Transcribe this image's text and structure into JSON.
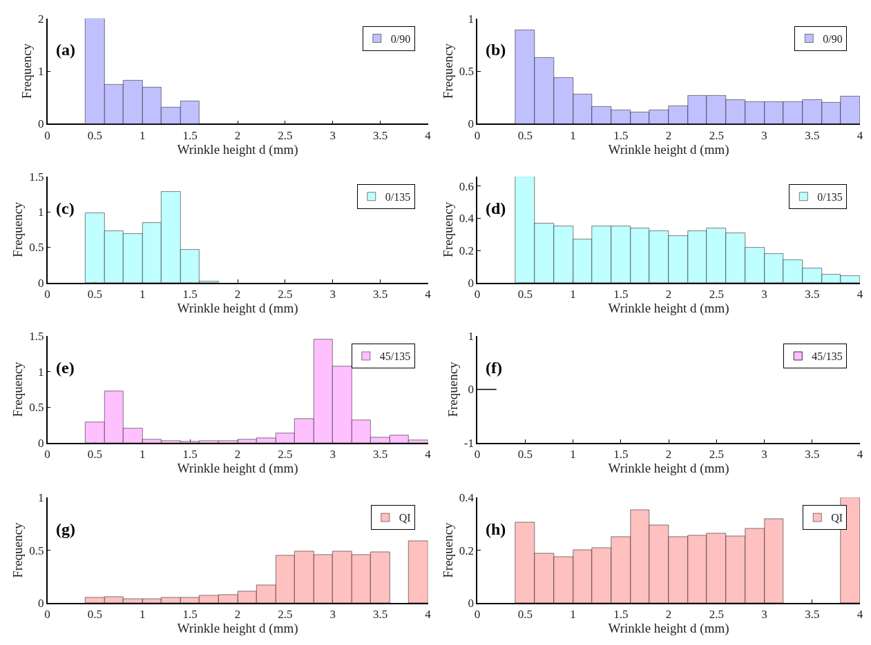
{
  "chart_data": [
    {
      "type": "histogram",
      "title": "(a)",
      "xlabel": "Wrinkle height d (mm)",
      "ylabel": "Frequency",
      "legend": "top right",
      "bins": [
        0.4,
        0.6,
        0.8,
        1.0,
        1.2,
        1.4,
        1.6
      ],
      "series": [
        {
          "name": "0/90",
          "color": "#c0c0ff",
          "values": [
            2.0,
            0.74,
            0.82,
            0.69,
            0.31,
            0.43
          ]
        }
      ],
      "xlim": [
        0,
        4
      ],
      "xticks": [
        0,
        0.5,
        1,
        1.5,
        2,
        2.5,
        3,
        3.5,
        4
      ],
      "ylim": [
        0,
        2
      ],
      "yticks": [
        0,
        1,
        2
      ]
    },
    {
      "type": "histogram",
      "title": "(b)",
      "xlabel": "Wrinkle height d (mm)",
      "ylabel": "Frequency",
      "legend": "top right",
      "bins": [
        0.4,
        0.6,
        0.8,
        1.0,
        1.2,
        1.4,
        1.6,
        1.8,
        2.0,
        2.2,
        2.4,
        2.6,
        2.8,
        3.0,
        3.2,
        3.4,
        3.6,
        3.8,
        4.0
      ],
      "series": [
        {
          "name": "0/90",
          "color": "#c0c0ff",
          "values": [
            0.89,
            0.63,
            0.44,
            0.28,
            0.16,
            0.13,
            0.11,
            0.13,
            0.17,
            0.27,
            0.27,
            0.23,
            0.21,
            0.21,
            0.21,
            0.23,
            0.2,
            0.26
          ]
        }
      ],
      "xlim": [
        0,
        4
      ],
      "xticks": [
        0,
        0.5,
        1,
        1.5,
        2,
        2.5,
        3,
        3.5,
        4
      ],
      "ylim": [
        0,
        1
      ],
      "yticks": [
        0,
        0.5,
        1
      ]
    },
    {
      "type": "histogram",
      "title": "(c)",
      "xlabel": "Wrinkle height d (mm)",
      "ylabel": "Frequency",
      "legend": "top right",
      "bins": [
        0.4,
        0.6,
        0.8,
        1.0,
        1.2,
        1.4,
        1.6,
        1.8
      ],
      "series": [
        {
          "name": "0/135",
          "color": "#c0ffff",
          "values": [
            0.98,
            0.73,
            0.69,
            0.85,
            1.29,
            0.47,
            0.02
          ]
        }
      ],
      "xlim": [
        0,
        4
      ],
      "xticks": [
        0,
        0.5,
        1,
        1.5,
        2,
        2.5,
        3,
        3.5,
        4
      ],
      "ylim": [
        0,
        1.5
      ],
      "yticks": [
        0,
        0.5,
        1,
        1.5
      ]
    },
    {
      "type": "histogram",
      "title": "(d)",
      "xlabel": "Wrinkle height d (mm)",
      "ylabel": "Frequency",
      "legend": "top right",
      "bins": [
        0.4,
        0.6,
        0.8,
        1.0,
        1.2,
        1.4,
        1.6,
        1.8,
        2.0,
        2.2,
        2.4,
        2.6,
        2.8,
        3.0,
        3.2,
        3.4,
        3.6,
        3.8,
        4.0
      ],
      "series": [
        {
          "name": "0/135",
          "color": "#c0ffff",
          "values": [
            0.66,
            0.37,
            0.35,
            0.27,
            0.35,
            0.35,
            0.34,
            0.32,
            0.29,
            0.32,
            0.34,
            0.31,
            0.22,
            0.18,
            0.14,
            0.09,
            0.05,
            0.04
          ]
        }
      ],
      "xlim": [
        0,
        4
      ],
      "xticks": [
        0,
        0.5,
        1,
        1.5,
        2,
        2.5,
        3,
        3.5,
        4
      ],
      "ylim": [
        0,
        0.66
      ],
      "yticks": [
        0,
        0.2,
        0.4,
        0.6
      ]
    },
    {
      "type": "histogram",
      "title": "(e)",
      "xlabel": "Wrinkle height d (mm)",
      "ylabel": "Frequency",
      "legend": "top right",
      "bins": [
        0.4,
        0.6,
        0.8,
        1.0,
        1.2,
        1.4,
        1.6,
        1.8,
        2.0,
        2.2,
        2.4,
        2.6,
        2.8,
        3.0,
        3.2,
        3.4,
        3.6,
        3.8,
        4.0
      ],
      "series": [
        {
          "name": "45/135",
          "color": "#ffc0ff",
          "values": [
            0.29,
            0.72,
            0.2,
            0.05,
            0.03,
            0.02,
            0.03,
            0.03,
            0.05,
            0.07,
            0.13,
            0.34,
            1.45,
            1.07,
            0.32,
            0.08,
            0.1,
            0.04
          ]
        }
      ],
      "xlim": [
        0,
        4
      ],
      "xticks": [
        0,
        0.5,
        1,
        1.5,
        2,
        2.5,
        3,
        3.5,
        4
      ],
      "ylim": [
        0,
        1.5
      ],
      "yticks": [
        0,
        0.5,
        1,
        1.5
      ]
    },
    {
      "type": "histogram",
      "title": "(f)",
      "xlabel": "Wrinkle height d (mm)",
      "ylabel": "Frequency",
      "legend": "top right",
      "series": [
        {
          "name": "45/135",
          "color": "#ffc0ff"
        },
        {
          "type": "line",
          "color": "#000000",
          "x": [
            0,
            0.2
          ],
          "values": [
            0,
            0
          ]
        }
      ],
      "xlim": [
        0,
        4
      ],
      "xticks": [
        0,
        0.5,
        1,
        1.5,
        2,
        2.5,
        3,
        3.5,
        4
      ],
      "ylim": [
        -1,
        1
      ],
      "yticks": [
        -1,
        0,
        1
      ]
    },
    {
      "type": "histogram",
      "title": "(g)",
      "xlabel": "Wrinkle height d (mm)",
      "ylabel": "Frequency",
      "legend": "top right",
      "bins": [
        0.4,
        0.6,
        0.8,
        1.0,
        1.2,
        1.4,
        1.6,
        1.8,
        2.0,
        2.2,
        2.4,
        2.6,
        2.8,
        3.0,
        3.2,
        3.4,
        3.6,
        3.8,
        4.0
      ],
      "series": [
        {
          "name": "QI",
          "color": "#ffc0c0",
          "values": [
            0.05,
            0.06,
            0.04,
            0.04,
            0.05,
            0.05,
            0.07,
            0.08,
            0.11,
            0.17,
            0.45,
            0.49,
            0.46,
            0.49,
            0.46,
            0.48,
            null,
            0.59
          ]
        }
      ],
      "xlim": [
        0,
        4
      ],
      "xticks": [
        0,
        0.5,
        1,
        1.5,
        2,
        2.5,
        3,
        3.5,
        4
      ],
      "ylim": [
        0,
        1
      ],
      "yticks": [
        0,
        0.5,
        1
      ]
    },
    {
      "type": "histogram",
      "title": "(h)",
      "xlabel": "Wrinkle height d (mm)",
      "ylabel": "Frequency",
      "legend": "top right",
      "bins": [
        0.4,
        0.6,
        0.8,
        1.0,
        1.2,
        1.4,
        1.6,
        1.8,
        2.0,
        2.2,
        2.4,
        2.6,
        2.8,
        3.0,
        3.2,
        3.4,
        3.6,
        3.8,
        4.0
      ],
      "series": [
        {
          "name": "QI",
          "color": "#ffc0c0",
          "values": [
            0.305,
            0.187,
            0.175,
            0.2,
            0.21,
            0.25,
            0.354,
            0.295,
            0.25,
            0.256,
            0.263,
            0.254,
            0.282,
            0.32,
            null,
            null,
            null,
            0.4
          ]
        }
      ],
      "xlim": [
        0,
        4
      ],
      "xticks": [
        0,
        0.5,
        1,
        1.5,
        2,
        2.5,
        3,
        3.5,
        4
      ],
      "ylim": [
        0,
        0.4
      ],
      "yticks": [
        0,
        0.2,
        0.4
      ]
    }
  ]
}
